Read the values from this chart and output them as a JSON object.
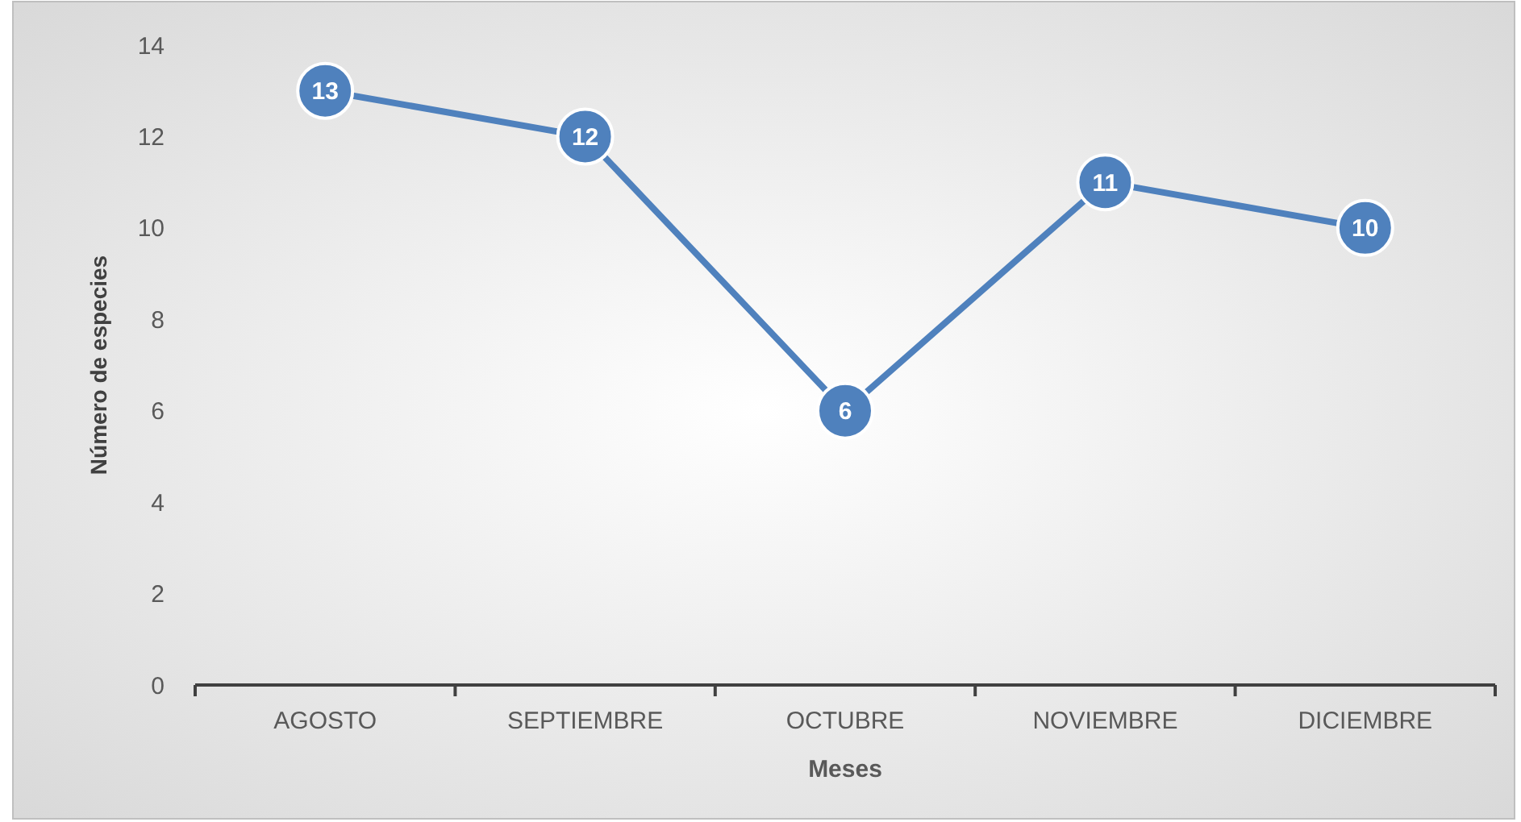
{
  "chart_data": {
    "type": "line",
    "xlabel": "Meses",
    "ylabel": "Número de especies",
    "categories": [
      "AGOSTO",
      "SEPTIEMBRE",
      "OCTUBRE",
      "NOVIEMBRE",
      "DICIEMBRE"
    ],
    "series": [
      {
        "color": "#4f81bd",
        "values": [
          13,
          12,
          6,
          11,
          10
        ]
      }
    ],
    "ylim": [
      0,
      14
    ],
    "yticks": [
      0,
      2,
      4,
      6,
      8,
      10,
      12,
      14
    ],
    "grid": false,
    "marker": "circle",
    "data_labels": true
  }
}
